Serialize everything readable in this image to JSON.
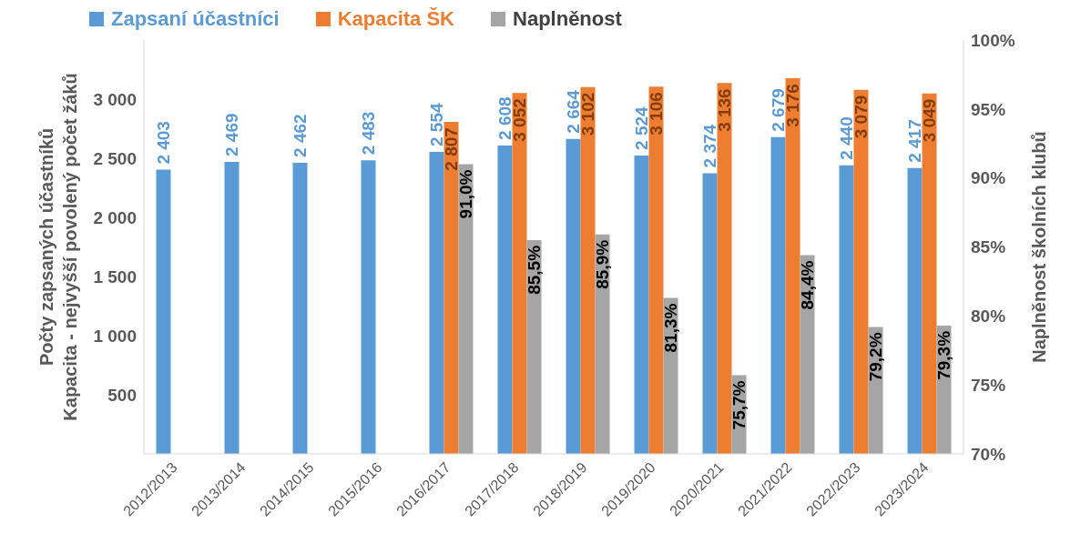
{
  "chart_data": {
    "type": "bar",
    "ylabel": "Počty zapsaných účastníků\nKapacita - nejvyšší povolený počet žáků",
    "y2label": "Naplněnost školních klubů",
    "categories": [
      "2012/2013",
      "2013/2014",
      "2014/2015",
      "2015/2016",
      "2016/2017",
      "2017/2018",
      "2018/2019",
      "2019/2020",
      "2020/2021",
      "2021/2022",
      "2022/2023",
      "2023/2024"
    ],
    "series": [
      {
        "name": "Zapsaní účastníci",
        "color": "#5b9bd5",
        "values": [
          2403,
          2469,
          2462,
          2483,
          2554,
          2608,
          2664,
          2524,
          2374,
          2679,
          2440,
          2417
        ],
        "value_labels": [
          "2 403",
          "2 469",
          "2 462",
          "2 483",
          "2 554",
          "2 608",
          "2 664",
          "2 524",
          "2 374",
          "2 679",
          "2 440",
          "2 417"
        ]
      },
      {
        "name": "Kapacita ŠK",
        "color": "#ed7d31",
        "values": [
          null,
          null,
          null,
          null,
          2807,
          3052,
          3102,
          3106,
          3136,
          3176,
          3079,
          3049
        ],
        "value_labels": [
          null,
          null,
          null,
          null,
          "2 807",
          "3 052",
          "3 102",
          "3 106",
          "3 136",
          "3 176",
          "3 079",
          "3 049"
        ]
      },
      {
        "name": "Naplněnost",
        "color": "#a5a5a5",
        "axis": "y2",
        "values": [
          null,
          null,
          null,
          null,
          91.0,
          85.5,
          85.9,
          81.3,
          75.7,
          84.4,
          79.2,
          79.3
        ],
        "value_labels": [
          null,
          null,
          null,
          null,
          "91,0%",
          "85,5%",
          "85,9%",
          "81,3%",
          "75,7%",
          "84,4%",
          "79,2%",
          "79,3%"
        ]
      }
    ],
    "ylim": [
      0,
      3500
    ],
    "yticks": [
      500,
      {
        "value": 1000,
        "label": "1 000"
      },
      {
        "value": 1500,
        "label": "1 500"
      },
      {
        "value": 2000,
        "label": "2 000"
      },
      {
        "value": 2500,
        "label": "2 500"
      },
      {
        "value": 3000,
        "label": "3 000"
      }
    ],
    "y2lim": [
      70,
      100
    ],
    "y2ticks": [
      {
        "value": 70,
        "label": "70%"
      },
      {
        "value": 75,
        "label": "75%"
      },
      {
        "value": 80,
        "label": "80%"
      },
      {
        "value": 85,
        "label": "85%"
      },
      {
        "value": 90,
        "label": "90%"
      },
      {
        "value": 95,
        "label": "95%"
      },
      {
        "value": 100,
        "label": "100%"
      }
    ],
    "grid": false,
    "legend": "top left"
  }
}
